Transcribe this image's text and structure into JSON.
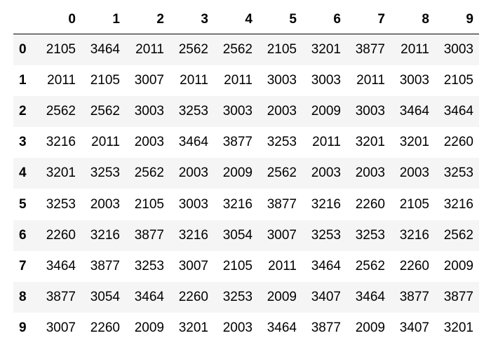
{
  "table": {
    "columns": [
      "0",
      "1",
      "2",
      "3",
      "4",
      "5",
      "6",
      "7",
      "8",
      "9"
    ],
    "index": [
      "0",
      "1",
      "2",
      "3",
      "4",
      "5",
      "6",
      "7",
      "8",
      "9"
    ],
    "rows": [
      [
        "2105",
        "3464",
        "2011",
        "2562",
        "2562",
        "2105",
        "3201",
        "3877",
        "2011",
        "3003"
      ],
      [
        "2011",
        "2105",
        "3007",
        "2011",
        "2011",
        "3003",
        "3003",
        "2011",
        "3003",
        "2105"
      ],
      [
        "2562",
        "2562",
        "3003",
        "3253",
        "3003",
        "2003",
        "2009",
        "3003",
        "3464",
        "3464"
      ],
      [
        "3216",
        "2011",
        "2003",
        "3464",
        "3877",
        "3253",
        "2011",
        "3201",
        "3201",
        "2260"
      ],
      [
        "3201",
        "3253",
        "2562",
        "2003",
        "2009",
        "2562",
        "2003",
        "2003",
        "2003",
        "3253"
      ],
      [
        "3253",
        "2003",
        "2105",
        "3003",
        "3216",
        "3877",
        "3216",
        "2260",
        "2105",
        "3216"
      ],
      [
        "2260",
        "3216",
        "3877",
        "3216",
        "3054",
        "3007",
        "3253",
        "3253",
        "3216",
        "2562"
      ],
      [
        "3464",
        "3877",
        "3253",
        "3007",
        "2105",
        "2011",
        "3464",
        "2562",
        "2260",
        "2009"
      ],
      [
        "3877",
        "3054",
        "3464",
        "2260",
        "3253",
        "2009",
        "3407",
        "3464",
        "3877",
        "3877"
      ],
      [
        "3007",
        "2260",
        "2009",
        "3201",
        "2003",
        "3464",
        "3877",
        "2009",
        "3407",
        "3201"
      ]
    ]
  },
  "colors": {
    "stripe": "#f5f5f5",
    "background": "#ffffff",
    "text": "#000000",
    "header_rule": "#000000"
  }
}
